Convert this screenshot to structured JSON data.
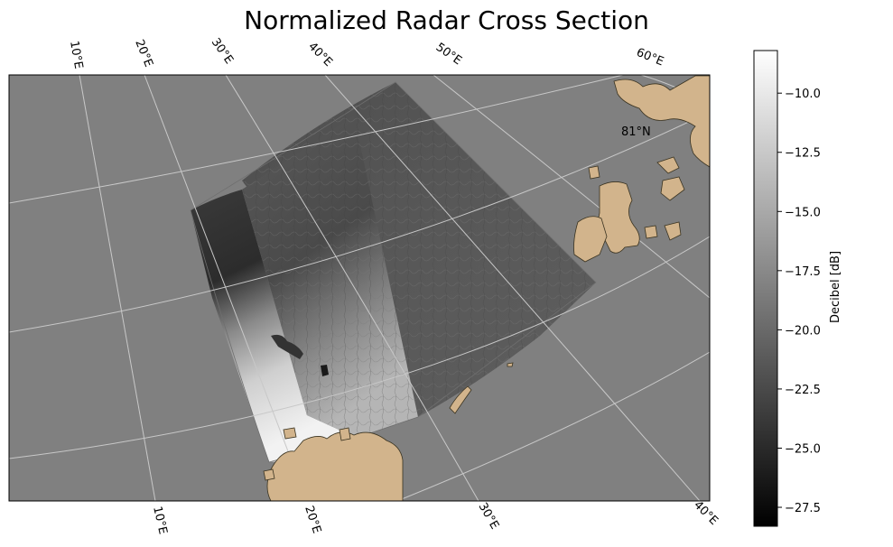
{
  "title": "Normalized Radar Cross Section",
  "map": {
    "top_lon_labels": [
      "10°E",
      "20°E",
      "30°E",
      "40°E",
      "50°E",
      "60°E"
    ],
    "bottom_lon_labels": [
      "10°E",
      "20°E",
      "30°E",
      "40°E"
    ],
    "lat_label": "81°N",
    "background_color": "#808080",
    "land_color": "#d2b48c",
    "gridline_color": "#c8c8c8"
  },
  "colorbar": {
    "label": "Decibel [dB]",
    "ticks": [
      "−10.0",
      "−12.5",
      "−15.0",
      "−17.5",
      "−20.0",
      "−22.5",
      "−25.0",
      "−27.5"
    ],
    "colormap": "gray",
    "range": [
      -28.3,
      -8.2
    ]
  }
}
